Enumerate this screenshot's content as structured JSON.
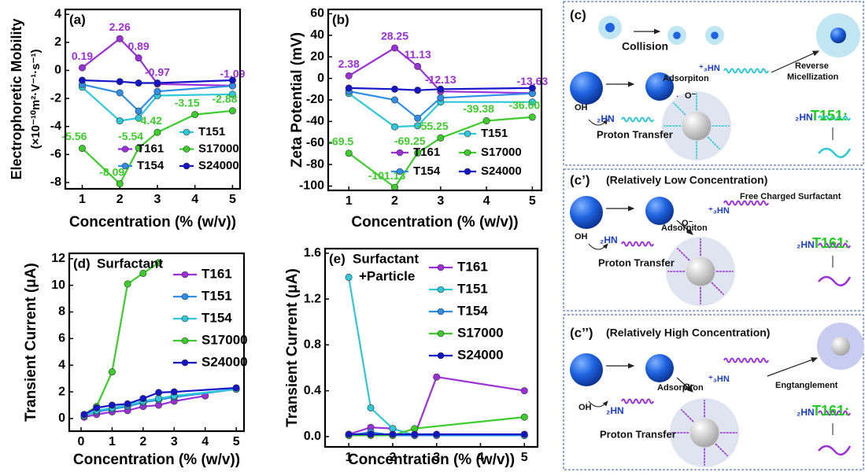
{
  "chart_data": [
    {
      "type": "line",
      "panel_label": "(a)",
      "ylabel": [
        "Electrophoretic Mobility",
        "(×10⁻¹⁰m²·V⁻¹·s⁻¹)"
      ],
      "xlabel": "Concentration (% (w/v))",
      "xlim": [
        0.55,
        5.2
      ],
      "xticks": [
        1,
        2,
        3,
        4,
        5
      ],
      "ylim": [
        -8.45,
        4.35
      ],
      "yticks": [
        4,
        2,
        0,
        -2,
        -4,
        -6,
        -8
      ],
      "legend": "lower right",
      "legend_columns": 2,
      "series": [
        {
          "name": "T151",
          "color": "#2ec8d8",
          "x": [
            1,
            2,
            2.5,
            3,
            5
          ],
          "values": [
            -1.2,
            -3.6,
            -3.4,
            -1.8,
            -1.7
          ]
        },
        {
          "name": "T161",
          "color": "#9b30d9",
          "x": [
            1,
            2,
            2.5,
            3,
            5
          ],
          "values": [
            0.19,
            2.26,
            0.89,
            -0.97,
            -1.09
          ],
          "data_labels": true
        },
        {
          "name": "S17000",
          "color": "#3ccc2c",
          "x": [
            1,
            2,
            2.5,
            3,
            4,
            5
          ],
          "values": [
            -5.56,
            -8.09,
            -5.54,
            -4.42,
            -3.15,
            -2.88
          ],
          "data_labels": true
        },
        {
          "name": "T154",
          "color": "#2f8fe8",
          "x": [
            1,
            2,
            2.5,
            3,
            5
          ],
          "values": [
            -1.0,
            -1.6,
            -2.9,
            -1.5,
            -1.1
          ]
        },
        {
          "name": "S24000",
          "color": "#1515c8",
          "x": [
            1,
            2,
            2.5,
            3,
            5
          ],
          "values": [
            -0.7,
            -0.8,
            -0.9,
            -0.9,
            -0.7
          ]
        }
      ]
    },
    {
      "type": "line",
      "panel_label": "(b)",
      "ylabel": "Zeta Potential (mV)",
      "xlabel": "Concentration (% (w/v))",
      "xlim": [
        0.55,
        5.2
      ],
      "xticks": [
        1,
        2,
        3,
        4,
        5
      ],
      "ylim": [
        -104,
        64
      ],
      "yticks": [
        60,
        40,
        20,
        0,
        -20,
        -40,
        -60,
        -80,
        -100
      ],
      "legend": "lower right",
      "legend_columns": 2,
      "series": [
        {
          "name": "T151",
          "color": "#2ec8d8",
          "x": [
            1,
            2,
            2.5,
            3,
            5
          ],
          "values": [
            -14,
            -45,
            -44,
            -22,
            -22
          ]
        },
        {
          "name": "T161",
          "color": "#9b30d9",
          "x": [
            1,
            2,
            2.5,
            3,
            5
          ],
          "values": [
            2.38,
            28.25,
            11.13,
            -12.13,
            -13.63
          ],
          "data_labels": true
        },
        {
          "name": "S17000",
          "color": "#3ccc2c",
          "x": [
            1,
            2,
            2.5,
            3,
            4,
            5
          ],
          "values": [
            -69.5,
            -101.13,
            -69.25,
            -55.25,
            -39.38,
            -36
          ],
          "value_labels": [
            "-69.5",
            "-101.13",
            "-69.25",
            "-55.25",
            "-39.38",
            "-36.00"
          ]
        },
        {
          "name": "T154",
          "color": "#2f8fe8",
          "x": [
            1,
            2,
            2.5,
            3,
            5
          ],
          "values": [
            -12,
            -20,
            -37,
            -18,
            -14
          ]
        },
        {
          "name": "S24000",
          "color": "#1515c8",
          "x": [
            1,
            2,
            2.5,
            3,
            5
          ],
          "values": [
            -9,
            -10,
            -11,
            -10,
            -9
          ]
        }
      ]
    },
    {
      "type": "line",
      "panel_label": "(d)",
      "annotation": [
        "Surfactant"
      ],
      "ylabel": "Transient Current (μA)",
      "xlabel": "Concentration (% (w/v))",
      "xlim": [
        -0.38,
        5.25
      ],
      "xticks": [
        0,
        1,
        2,
        3,
        4,
        5
      ],
      "ylim": [
        -0.95,
        12.4
      ],
      "yticks": [
        0,
        2,
        4,
        6,
        8,
        10,
        12
      ],
      "legend": "upper right",
      "legend_columns": 1,
      "series": [
        {
          "name": "T161",
          "color": "#9b30d9",
          "x": [
            0.1,
            0.5,
            1,
            1.5,
            2,
            2.5,
            3,
            4
          ],
          "values": [
            0.1,
            0.3,
            0.5,
            0.6,
            0.9,
            1.0,
            1.3,
            1.7
          ]
        },
        {
          "name": "T151",
          "color": "#2f8fe8",
          "x": [
            0.1,
            0.5,
            1,
            1.5,
            2,
            2.5,
            3,
            5
          ],
          "values": [
            0.2,
            0.5,
            0.7,
            0.9,
            1.2,
            1.4,
            1.6,
            2.2
          ]
        },
        {
          "name": "T154",
          "color": "#2ec8d8",
          "x": [
            0.1,
            0.5,
            1,
            1.5,
            2,
            2.5,
            3,
            5
          ],
          "values": [
            0.2,
            0.6,
            0.8,
            1.0,
            1.3,
            1.5,
            1.7,
            2.2
          ]
        },
        {
          "name": "S17000",
          "color": "#3ccc2c",
          "x": [
            0.1,
            0.5,
            1,
            1.5,
            2,
            2.5
          ],
          "values": [
            0.3,
            0.9,
            3.5,
            10.1,
            10.9,
            11.7
          ]
        },
        {
          "name": "S24000",
          "color": "#1515c8",
          "x": [
            0.1,
            0.5,
            1,
            1.5,
            2,
            2.5,
            3,
            5
          ],
          "values": [
            0.3,
            0.8,
            1.0,
            1.1,
            1.5,
            1.95,
            2.0,
            2.3
          ]
        }
      ]
    },
    {
      "type": "line",
      "panel_label": "(e)",
      "annotation": [
        "Surfactant",
        "+Particle"
      ],
      "ylabel": "Transient Current (μA)",
      "xlabel": "Concentration (% (w/v))",
      "xlim": [
        0.46,
        5.3
      ],
      "xticks": [
        1,
        2,
        3,
        4,
        5
      ],
      "ylim": [
        -0.09,
        1.64
      ],
      "yticks": [
        {
          "value": 0,
          "label": "0.0"
        },
        {
          "value": 0.4,
          "label": "0.4"
        },
        {
          "value": 0.8,
          "label": "0.8"
        },
        {
          "value": 1.2,
          "label": "1.2"
        },
        {
          "value": 1.6,
          "label": "1.6"
        }
      ],
      "legend": "upper right",
      "legend_columns": 1,
      "series": [
        {
          "name": "T161",
          "color": "#9b30d9",
          "x": [
            1,
            1.5,
            2,
            2.5,
            3,
            5
          ],
          "values": [
            0.02,
            0.08,
            0.07,
            0.01,
            0.52,
            0.4
          ]
        },
        {
          "name": "T151",
          "color": "#2ec8d8",
          "x": [
            1,
            1.5,
            2,
            2.5,
            3,
            5
          ],
          "values": [
            1.39,
            0.25,
            0.07,
            0.01,
            0.01,
            0.01
          ]
        },
        {
          "name": "T154",
          "color": "#2f8fe8",
          "x": [
            1,
            1.5,
            2,
            2.5,
            3,
            5
          ],
          "values": [
            0.01,
            0.04,
            0.01,
            0.01,
            0.01,
            0.01
          ]
        },
        {
          "name": "S17000",
          "color": "#3ccc2c",
          "x": [
            1,
            1.5,
            2,
            2.5,
            5
          ],
          "values": [
            0.01,
            0.01,
            0.01,
            0.07,
            0.17
          ]
        },
        {
          "name": "S24000",
          "color": "#1515c8",
          "x": [
            1,
            1.5,
            2,
            2.5,
            3,
            5
          ],
          "values": [
            0.02,
            0.02,
            0.02,
            0.02,
            0.02,
            0.02
          ]
        }
      ]
    }
  ],
  "diagram": {
    "panels": [
      {
        "label": "(c)",
        "collision": "Collision",
        "reverse": "Reverse",
        "micellization": "Micellization",
        "charged": "⁺₃HN",
        "adsorption": "Adsorpiton",
        "hydroxyl": "OH",
        "amine": "₂HN",
        "oxide": "O⁻",
        "proton_transfer": "Proton Transfer",
        "species_amine": "₂HN",
        "species": "T151:"
      },
      {
        "label": "(c’)",
        "subtitle": "(Relatively Low Concentration)",
        "free": "Free Charged Surfactant",
        "charged": "⁺₃HN",
        "adsorption": "Adsorpiton",
        "hydroxyl": "OH",
        "amine": "₂HN",
        "oxide": "O⁻",
        "proton_transfer": "Proton Transfer",
        "species_amine": "₂HN",
        "species": "T161:"
      },
      {
        "label": "(c’’)",
        "subtitle": "(Relatively High Concentration)",
        "entanglement": "Engtanglement",
        "charged": "⁺₃HN",
        "adsorption": "Adsorpiton",
        "hydroxyl": "OH",
        "amine": "₂HN",
        "oxide": "O⁻",
        "proton_transfer": "Proton Transfer",
        "species_amine": "₂HN",
        "species": "T161:"
      }
    ]
  }
}
